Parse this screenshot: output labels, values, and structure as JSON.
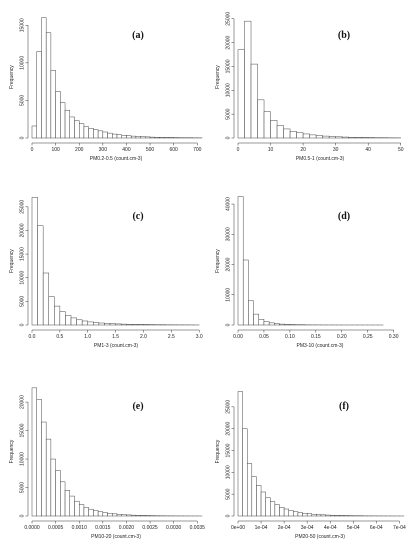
{
  "chart_data": [
    {
      "type": "bar",
      "panel_label": "(a)",
      "xlabel": "PM0.2-0.5 (count.cm-3)",
      "ylabel": "Frequency",
      "xlim": [
        0,
        720
      ],
      "ylim": [
        0,
        16500
      ],
      "bin_width": 20,
      "x_ticks": [
        "0",
        "100",
        "200",
        "300",
        "400",
        "500",
        "600",
        "700"
      ],
      "y_ticks": [
        "0",
        "5000",
        "10000",
        "15000"
      ],
      "values": [
        1600,
        11500,
        16000,
        14000,
        9000,
        6200,
        4700,
        3700,
        2800,
        2300,
        1900,
        1500,
        1300,
        1100,
        950,
        800,
        650,
        520,
        430,
        360,
        300,
        250,
        210,
        180,
        150,
        120,
        100,
        85,
        70,
        60,
        50,
        40,
        35,
        30,
        25,
        20
      ]
    },
    {
      "type": "bar",
      "panel_label": "(b)",
      "xlabel": "PM0.5-1 (count.cm-3)",
      "ylabel": "Frequency",
      "xlim": [
        0,
        51
      ],
      "ylim": [
        0,
        26000
      ],
      "bin_width": 2,
      "x_ticks": [
        "0",
        "10",
        "20",
        "30",
        "40",
        "50"
      ],
      "y_ticks": [
        "0",
        "5000",
        "10000",
        "15000",
        "20000",
        "25000"
      ],
      "values": [
        18500,
        24500,
        15500,
        8000,
        5500,
        3700,
        2600,
        1900,
        1400,
        1100,
        850,
        650,
        520,
        400,
        320,
        250,
        200,
        160,
        120,
        100,
        80,
        60,
        50,
        40,
        30
      ]
    },
    {
      "type": "bar",
      "panel_label": "(c)",
      "xlabel": "PM1-3 (count.cm-3)",
      "ylabel": "Frequency",
      "xlim": [
        0,
        3.05
      ],
      "ylim": [
        0,
        27500
      ],
      "bin_width": 0.1,
      "x_ticks": [
        "0.0",
        "0.5",
        "1.0",
        "1.5",
        "2.0",
        "2.5",
        "3.0"
      ],
      "y_ticks": [
        "0",
        "5000",
        "10000",
        "15000",
        "20000",
        "25000"
      ],
      "values": [
        27000,
        21000,
        11000,
        6000,
        4000,
        2800,
        2000,
        1500,
        1100,
        850,
        650,
        520,
        420,
        340,
        280,
        230,
        190,
        160,
        130,
        110,
        90,
        75,
        60,
        50,
        40,
        35,
        30,
        25,
        20,
        15
      ]
    },
    {
      "type": "bar",
      "panel_label": "(d)",
      "xlabel": "PM3-10 (count.cm-3)",
      "ylabel": "Frequency",
      "xlim": [
        0,
        0.32
      ],
      "ylim": [
        0,
        43000
      ],
      "bin_width": 0.01,
      "x_ticks": [
        "0.00",
        "0.05",
        "0.10",
        "0.15",
        "0.20",
        "0.25",
        "0.30"
      ],
      "y_ticks": [
        "0",
        "10000",
        "20000",
        "30000",
        "40000"
      ],
      "values": [
        42500,
        21500,
        8000,
        3600,
        1900,
        1100,
        700,
        450,
        300,
        200,
        140,
        100,
        75,
        55,
        40,
        30,
        25,
        20,
        15,
        12,
        10,
        8,
        6,
        5,
        4,
        3,
        2,
        2,
        1,
        1,
        1,
        1
      ]
    },
    {
      "type": "bar",
      "panel_label": "(e)",
      "xlabel": "PM10-20 (count.cm-3)",
      "ylabel": "Frequency",
      "xlim": [
        0,
        0.0036
      ],
      "ylim": [
        0,
        23000
      ],
      "bin_width": 0.0001,
      "x_ticks": [
        "0.0000",
        "0.0005",
        "0.0010",
        "0.0015",
        "0.0020",
        "0.0025",
        "0.0030",
        "0.0035"
      ],
      "y_ticks": [
        "0",
        "5000",
        "10000",
        "15000",
        "20000"
      ],
      "values": [
        22500,
        20500,
        16500,
        13500,
        10000,
        8000,
        6000,
        4500,
        3500,
        2600,
        2000,
        1500,
        1200,
        950,
        750,
        600,
        480,
        380,
        300,
        240,
        190,
        150,
        120,
        95,
        75,
        60,
        48,
        38,
        30,
        24,
        19,
        15,
        12,
        10,
        8,
        6
      ]
    },
    {
      "type": "bar",
      "panel_label": "(f)",
      "xlabel": "PM20-50 (count.cm-3)",
      "ylabel": "Frequency",
      "xlim": [
        0,
        0.00072
      ],
      "ylim": [
        0,
        30000
      ],
      "bin_width": 2e-05,
      "x_ticks": [
        "0e+00",
        "1e-04",
        "2e-04",
        "3e-04",
        "4e-04",
        "5e-04",
        "6e-04",
        "7e-04"
      ],
      "y_ticks": [
        "0",
        "5000",
        "10000",
        "15000",
        "20000",
        "25000"
      ],
      "values": [
        28500,
        20000,
        12000,
        9000,
        7000,
        5500,
        4200,
        3300,
        2600,
        2000,
        1600,
        1250,
        1000,
        800,
        640,
        510,
        410,
        330,
        270,
        220,
        180,
        145,
        120,
        95,
        78,
        63,
        52,
        42,
        35,
        28,
        23,
        19,
        15,
        12,
        10,
        8
      ]
    }
  ]
}
